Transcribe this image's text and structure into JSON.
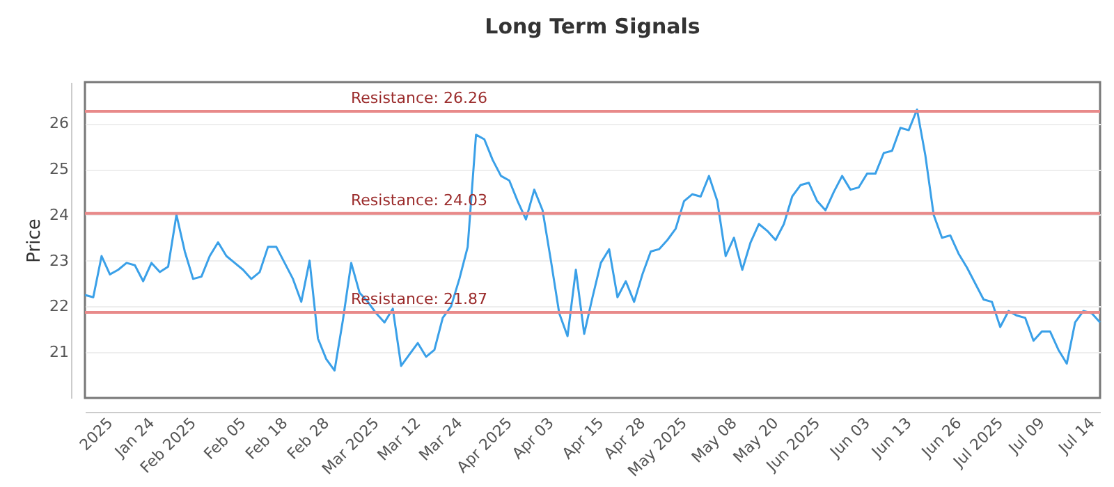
{
  "chart_data": {
    "type": "line",
    "title": "Long Term Signals",
    "ylabel": "Price",
    "categories": [
      null,
      null,
      null,
      "2025",
      null,
      null,
      null,
      null,
      "Jan 24",
      null,
      null,
      null,
      null,
      "Feb 2025",
      null,
      null,
      null,
      null,
      null,
      "Feb 05",
      null,
      null,
      null,
      null,
      "Feb 18",
      null,
      null,
      null,
      null,
      "Feb 28",
      null,
      null,
      null,
      null,
      null,
      "Mar 2025",
      null,
      null,
      null,
      null,
      "Mar 12",
      null,
      null,
      null,
      null,
      "Mar 24",
      null,
      null,
      null,
      null,
      null,
      "Apr 2025",
      null,
      null,
      null,
      null,
      "Apr 03",
      null,
      null,
      null,
      null,
      null,
      "Apr 15",
      null,
      null,
      null,
      null,
      "Apr 28",
      null,
      null,
      null,
      null,
      "May 2025",
      null,
      null,
      null,
      null,
      null,
      "May 08",
      null,
      null,
      null,
      null,
      "May 20",
      null,
      null,
      null,
      null,
      "Jun 2025",
      null,
      null,
      null,
      null,
      null,
      "Jun 03",
      null,
      null,
      null,
      null,
      "Jun 13",
      null,
      null,
      null,
      null,
      null,
      "Jun 26",
      null,
      null,
      null,
      null,
      "Jul 2025",
      null,
      null,
      null,
      null,
      "Jul 09",
      null,
      null,
      null,
      null,
      null,
      "Jul 14",
      null
    ],
    "series": [
      {
        "color": "#3aa0e8",
        "values": [
          22.25,
          22.2,
          23.1,
          22.7,
          22.8,
          22.95,
          22.9,
          22.55,
          22.95,
          22.75,
          22.87,
          24.0,
          23.2,
          22.6,
          22.65,
          23.1,
          23.4,
          23.1,
          22.95,
          22.8,
          22.6,
          22.75,
          23.3,
          23.3,
          22.95,
          22.6,
          22.1,
          23.0,
          21.3,
          20.85,
          20.6,
          21.7,
          22.95,
          22.3,
          22.1,
          21.85,
          21.65,
          21.95,
          20.7,
          20.95,
          21.2,
          20.9,
          21.05,
          21.75,
          22.0,
          22.6,
          23.3,
          25.75,
          25.65,
          25.2,
          24.85,
          24.75,
          24.3,
          23.9,
          24.55,
          24.1,
          23.0,
          21.85,
          21.35,
          22.8,
          21.4,
          22.2,
          22.95,
          23.25,
          22.2,
          22.55,
          22.1,
          22.7,
          23.2,
          23.25,
          23.45,
          23.7,
          24.3,
          24.45,
          24.4,
          24.85,
          24.3,
          23.1,
          23.5,
          22.8,
          23.4,
          23.8,
          23.65,
          23.45,
          23.8,
          24.4,
          24.65,
          24.7,
          24.3,
          24.1,
          24.5,
          24.85,
          24.55,
          24.6,
          24.9,
          24.9,
          25.35,
          25.4,
          25.9,
          25.85,
          26.3,
          25.3,
          24.0,
          23.5,
          23.55,
          23.15,
          22.85,
          22.5,
          22.15,
          22.1,
          21.55,
          21.9,
          21.8,
          21.75,
          21.25,
          21.45,
          21.45,
          21.05,
          20.75,
          21.65,
          21.9,
          21.85,
          21.65
        ]
      }
    ],
    "ylim": [
      20,
      26.9
    ],
    "yticks": [
      21,
      22,
      23,
      24,
      25,
      26
    ],
    "grid": "y",
    "marker": "none",
    "line_style": "solid",
    "ref_lines": [
      {
        "axis": "y",
        "value": 26.26,
        "label": "Resistance: 26.26",
        "color": "#e88a8a"
      },
      {
        "axis": "y",
        "value": 24.03,
        "label": "Resistance: 24.03",
        "color": "#e88a8a"
      },
      {
        "axis": "y",
        "value": 21.87,
        "label": "Resistance: 21.87",
        "color": "#e88a8a"
      }
    ]
  }
}
